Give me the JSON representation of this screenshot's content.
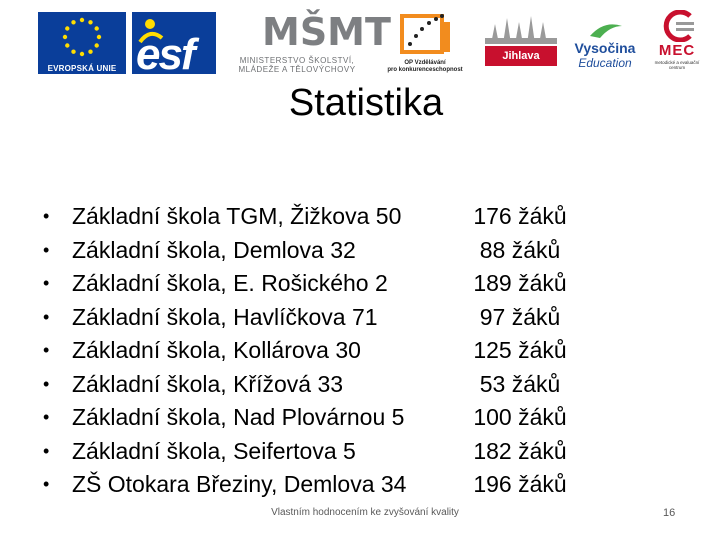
{
  "logos": {
    "eu_caption": "EVROPSKÁ UNIE",
    "esf_text": "esf",
    "ministry_mark": "MŠMT",
    "ministry_line1": "MINISTERSTVO ŠKOLSTVÍ,",
    "ministry_line2": "MLÁDEŽE A TĚLOVÝCHOVY",
    "op_line1": "OP Vzdělávání",
    "op_line2": "pro konkurenceschopnost",
    "jihlava": "Jihlava",
    "vysocina_title": "Vysočina",
    "vysocina_sub": "Education",
    "mec_title": "MEC",
    "mec_sub": "metodické a evaluační centrum",
    "eu_color": "#0a3e9a",
    "jihlava_color": "#c8102e",
    "vysocina_color": "#1f4e9c"
  },
  "slide": {
    "title": "Statistika",
    "items": [
      {
        "school": "Základní škola TGM, Žižkova 50",
        "count": "176 žáků"
      },
      {
        "school": "Základní škola, Demlova 32",
        "count": "88 žáků"
      },
      {
        "school": "Základní škola, E. Rošického 2",
        "count": "189 žáků"
      },
      {
        "school": "Základní škola, Havlíčkova 71",
        "count": "97 žáků"
      },
      {
        "school": "Základní škola, Kollárova 30",
        "count": "125 žáků"
      },
      {
        "school": "Základní škola, Křížová 33",
        "count": "53 žáků"
      },
      {
        "school": "Základní škola, Nad Plovárnou 5",
        "count": "100 žáků"
      },
      {
        "school": "Základní škola, Seifertova 5",
        "count": "182 žáků"
      },
      {
        "school": "ZŠ Otokara Březiny, Demlova 34",
        "count": "196 žáků"
      }
    ],
    "bullet": "•",
    "footer": "Vlastním hodnocením ke zvyšování kvality",
    "page_number": "16"
  }
}
